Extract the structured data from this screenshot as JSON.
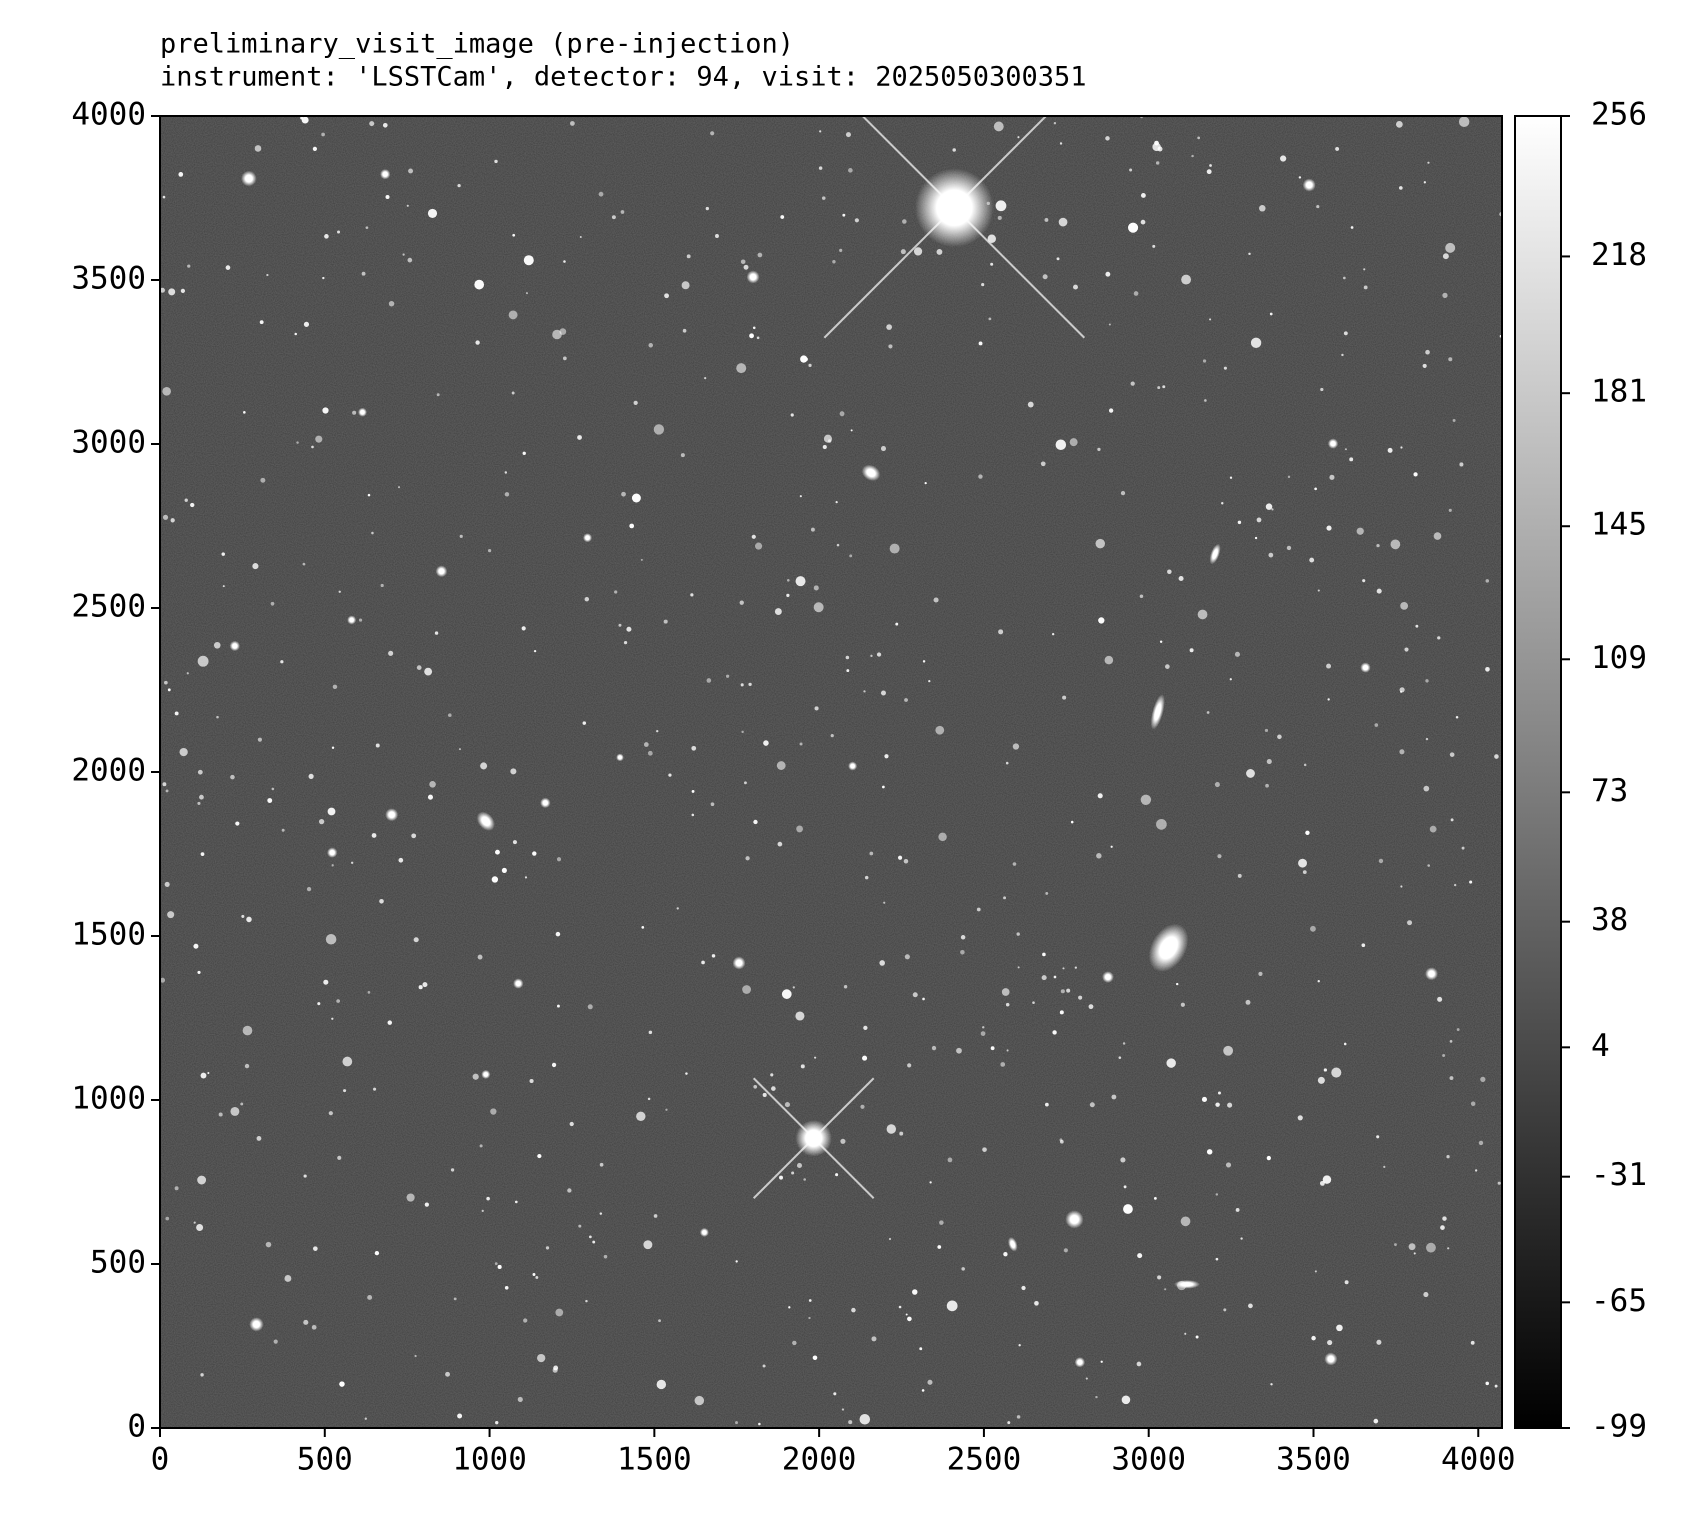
{
  "chart_data": {
    "type": "image",
    "title_lines": [
      "preliminary_visit_image (pre-injection)",
      "instrument: 'LSSTCam', detector: 94, visit: 2025050300351"
    ],
    "xlim": [
      0,
      4072
    ],
    "ylim": [
      0,
      4000
    ],
    "xticks": [
      0,
      500,
      1000,
      1500,
      2000,
      2500,
      3000,
      3500,
      4000
    ],
    "yticks": [
      0,
      500,
      1000,
      1500,
      2000,
      2500,
      3000,
      3500,
      4000
    ],
    "colorbar": {
      "lim": [
        -99,
        256
      ],
      "ticks": [
        -99,
        -65,
        -31,
        4,
        38,
        73,
        109,
        145,
        181,
        218,
        256
      ],
      "colors": [
        "#000000",
        "#ffffff"
      ]
    }
  }
}
